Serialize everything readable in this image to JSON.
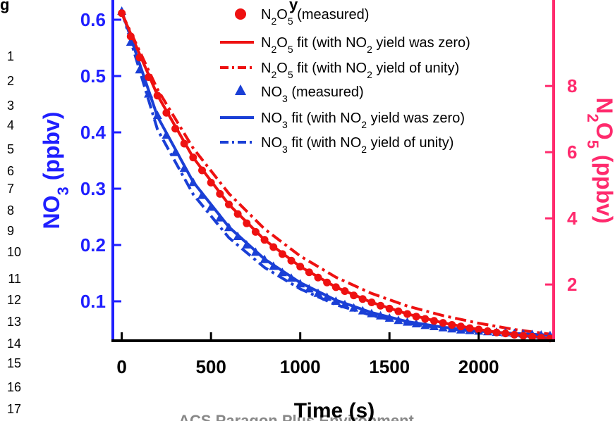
{
  "line_numbers": [
    "1",
    "2",
    "3",
    "4",
    "5",
    "6",
    "7",
    "8",
    "9",
    "10",
    "11",
    "12",
    "13",
    "14",
    "15",
    "16",
    "17"
  ],
  "fragments": {
    "top_left": "g",
    "top_middle": "y",
    "bottom_watermark": "ACS Paragon Plus Environment"
  },
  "colors": {
    "left_axis": "#1f1fff",
    "right_axis": "#ff2a6d",
    "n2o5": "#ee1111",
    "no3": "#1a3fd6"
  },
  "chart_data": {
    "type": "line",
    "xlabel": "Time (s)",
    "ylabel_left": {
      "base": "NO",
      "sub": "3",
      "rest": " (ppbv)"
    },
    "ylabel_right": {
      "p1": "N",
      "s1": "2",
      "p2": "O",
      "s2": "5",
      "rest": " (ppbv)"
    },
    "xlim": [
      -50,
      2420
    ],
    "ylim_left": [
      0.03,
      0.635
    ],
    "ylim_right": [
      0.3,
      10.6
    ],
    "x_ticks": [
      0,
      500,
      1000,
      1500,
      2000
    ],
    "x_tick_labels": [
      "0",
      "500",
      "1000",
      "1500",
      "2000"
    ],
    "y_left_ticks": [
      0.1,
      0.2,
      0.3,
      0.4,
      0.5,
      0.6
    ],
    "y_left_tick_labels": [
      "0.1",
      "0.2",
      "0.3",
      "0.4",
      "0.5",
      "0.6"
    ],
    "y_right_ticks": [
      2,
      4,
      6,
      8
    ],
    "y_right_tick_labels": [
      "2",
      "4",
      "6",
      "8"
    ],
    "legend_position": "top-right",
    "series": [
      {
        "id": "n2o5_meas",
        "axis": "right",
        "kind": "markers",
        "marker": "circle",
        "color": "#ee1111",
        "legend": {
          "p1": "N",
          "s1": "2",
          "p2": "O",
          "s2": "5",
          "rest": " (measured)"
        },
        "x": [
          0,
          50,
          100,
          150,
          200,
          250,
          300,
          350,
          400,
          450,
          500,
          550,
          600,
          650,
          700,
          750,
          800,
          850,
          900,
          950,
          1000,
          1050,
          1100,
          1150,
          1200,
          1250,
          1300,
          1350,
          1400,
          1450,
          1500,
          1550,
          1600,
          1650,
          1700,
          1750,
          1800,
          1850,
          1900,
          1950,
          2000,
          2050,
          2100,
          2150,
          2200,
          2250,
          2300,
          2350,
          2400
        ],
        "y": [
          10.2,
          9.5,
          8.86,
          8.27,
          7.71,
          7.19,
          6.71,
          6.26,
          5.84,
          5.45,
          5.08,
          4.74,
          4.42,
          4.13,
          3.85,
          3.59,
          3.35,
          3.13,
          2.92,
          2.72,
          2.54,
          2.37,
          2.21,
          2.06,
          1.92,
          1.8,
          1.67,
          1.56,
          1.46,
          1.36,
          1.27,
          1.19,
          1.11,
          1.03,
          0.96,
          0.9,
          0.84,
          0.78,
          0.73,
          0.68,
          0.64,
          0.59,
          0.55,
          0.52,
          0.48,
          0.45,
          0.42,
          0.39,
          0.37
        ]
      },
      {
        "id": "n2o5_fit_zero",
        "axis": "right",
        "kind": "line",
        "dash": "solid",
        "color": "#ee1111",
        "legend": {
          "p1": "N",
          "s1": "2",
          "p2": "O",
          "s2": "5",
          "mid": " fit (with NO",
          "s3": "2",
          "rest": " yield was zero)"
        },
        "x": [
          0,
          200,
          400,
          600,
          800,
          1000,
          1200,
          1400,
          1600,
          1800,
          2000,
          2200,
          2400
        ],
        "y": [
          10.2,
          7.72,
          5.84,
          4.42,
          3.35,
          2.54,
          1.92,
          1.46,
          1.11,
          0.84,
          0.64,
          0.48,
          0.37
        ]
      },
      {
        "id": "n2o5_fit_unity",
        "axis": "right",
        "kind": "line",
        "dash": "dashdot",
        "color": "#ee1111",
        "legend": {
          "p1": "N",
          "s1": "2",
          "p2": "O",
          "s2": "5",
          "mid": " fit (with NO",
          "s3": "2",
          "rest": " yield of unity)"
        },
        "x": [
          0,
          200,
          400,
          600,
          800,
          1000,
          1200,
          1400,
          1600,
          1800,
          2000,
          2200,
          2400
        ],
        "y": [
          10.2,
          7.9,
          6.12,
          4.75,
          3.68,
          2.86,
          2.22,
          1.73,
          1.35,
          1.06,
          0.83,
          0.64,
          0.5
        ]
      },
      {
        "id": "no3_meas",
        "axis": "left",
        "kind": "markers",
        "marker": "triangle",
        "color": "#1a3fd6",
        "legend": {
          "p1": "NO",
          "s1": "3",
          "rest": " (measured)"
        },
        "x": [
          0,
          50,
          100,
          150,
          200,
          250,
          300,
          350,
          400,
          450,
          500,
          550,
          600,
          650,
          700,
          750,
          800,
          850,
          900,
          950,
          1000,
          1050,
          1100,
          1150,
          1200,
          1250,
          1300,
          1350,
          1400,
          1450,
          1500,
          1550,
          1600,
          1650,
          1700,
          1750,
          1800,
          1850,
          1900,
          1950,
          2000,
          2050,
          2100,
          2150,
          2200,
          2250,
          2300,
          2350,
          2400
        ],
        "y": [
          0.615,
          0.56,
          0.511,
          0.468,
          0.43,
          0.395,
          0.364,
          0.336,
          0.311,
          0.288,
          0.267,
          0.248,
          0.231,
          0.215,
          0.2,
          0.187,
          0.174,
          0.162,
          0.151,
          0.141,
          0.131,
          0.122,
          0.114,
          0.107,
          0.1,
          0.094,
          0.088,
          0.083,
          0.078,
          0.074,
          0.07,
          0.066,
          0.063,
          0.06,
          0.057,
          0.055,
          0.053,
          0.051,
          0.049,
          0.048,
          0.047,
          0.046,
          0.045,
          0.044,
          0.043,
          0.042,
          0.041,
          0.04,
          0.039
        ]
      },
      {
        "id": "no3_fit_zero",
        "axis": "left",
        "kind": "line",
        "dash": "solid",
        "color": "#1a3fd6",
        "legend": {
          "p1": "NO",
          "s1": "3",
          "mid": " fit (with NO",
          "s3": "2",
          "rest": " yield was zero)"
        },
        "x": [
          0,
          200,
          400,
          600,
          800,
          1000,
          1200,
          1400,
          1600,
          1800,
          2000,
          2200,
          2400
        ],
        "y": [
          0.615,
          0.428,
          0.312,
          0.232,
          0.175,
          0.133,
          0.102,
          0.08,
          0.064,
          0.054,
          0.047,
          0.043,
          0.04
        ]
      },
      {
        "id": "no3_fit_unity",
        "axis": "left",
        "kind": "line",
        "dash": "dashdot",
        "color": "#1a3fd6",
        "legend": {
          "p1": "NO",
          "s1": "3",
          "mid": " fit (with NO",
          "s3": "2",
          "rest": " yield of unity)"
        },
        "x": [
          0,
          200,
          400,
          600,
          800,
          1000,
          1200,
          1400,
          1600,
          1800,
          2000,
          2200,
          2400
        ],
        "y": [
          0.615,
          0.405,
          0.29,
          0.213,
          0.16,
          0.122,
          0.094,
          0.075,
          0.061,
          0.052,
          0.046,
          0.042,
          0.04
        ]
      }
    ]
  }
}
